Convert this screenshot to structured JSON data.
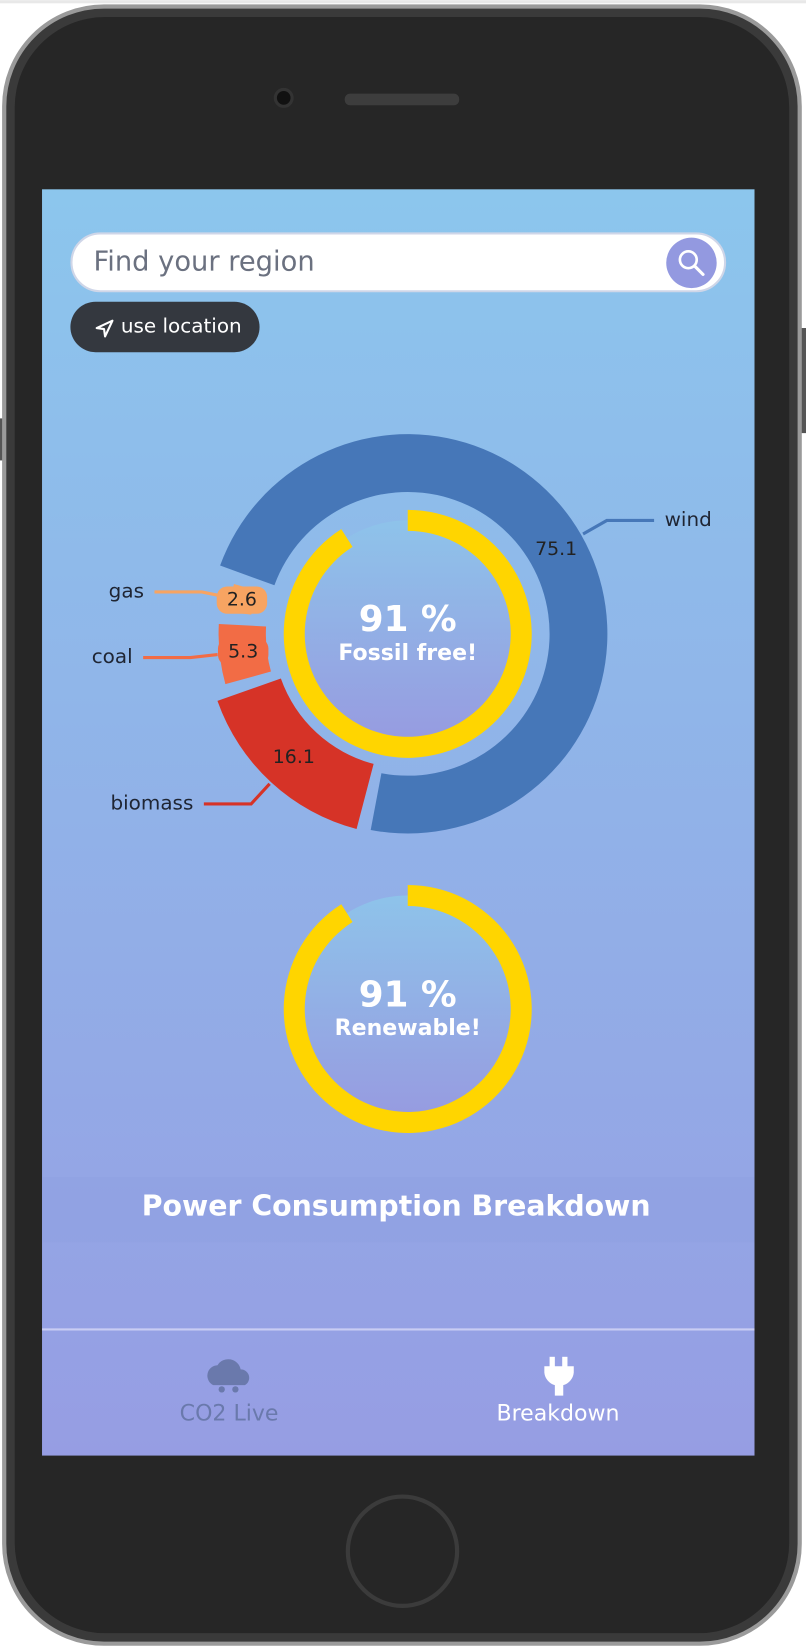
{
  "search": {
    "placeholder": "Find your region"
  },
  "location_button": "use location",
  "chart_data": {
    "type": "donut",
    "categories": [
      "wind",
      "biomass",
      "coal",
      "gas"
    ],
    "values": [
      75.1,
      16.1,
      5.3,
      2.6
    ],
    "colors": [
      "#4677b8",
      "#d63327",
      "#f26c45",
      "#f7a462"
    ]
  },
  "gauges": [
    {
      "value": 91,
      "label": "91 %",
      "caption": "Fossil free!",
      "range": [
        0,
        100
      ],
      "color": "#ffd500"
    },
    {
      "value": 91,
      "label": "91 %",
      "caption": "Renewable!",
      "range": [
        0,
        100
      ],
      "color": "#ffd500"
    }
  ],
  "title": "Power Consumption Breakdown",
  "nav": [
    "CO2 Live",
    "Breakdown"
  ]
}
